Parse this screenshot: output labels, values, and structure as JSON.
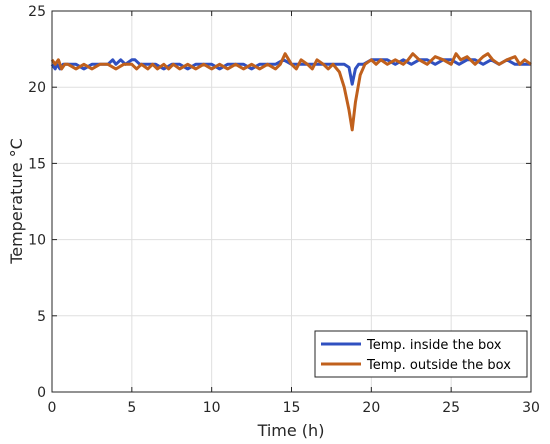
{
  "chart_data": {
    "type": "line",
    "title": "",
    "xlabel": "Time (h)",
    "ylabel": "Temperature °C",
    "xlim": [
      0,
      30
    ],
    "ylim": [
      0,
      25
    ],
    "x_ticks": [
      0,
      5,
      10,
      15,
      20,
      25,
      30
    ],
    "y_ticks": [
      0,
      5,
      10,
      15,
      20,
      25
    ],
    "grid": true,
    "legend_position": "bottom-right",
    "series": [
      {
        "name": "Temp. inside the box",
        "color": "#3050c0",
        "x": [
          0,
          0.2,
          0.3,
          0.5,
          0.7,
          1,
          1.5,
          2,
          2.5,
          3,
          3.5,
          3.8,
          4,
          4.3,
          4.6,
          5,
          5.2,
          5.5,
          6,
          6.5,
          7,
          7.5,
          8,
          8.5,
          9,
          9.5,
          10,
          10.5,
          11,
          11.5,
          12,
          12.5,
          13,
          13.5,
          14,
          14.5,
          15,
          15.5,
          16,
          16.5,
          17,
          17.5,
          18,
          18.3,
          18.6,
          18.8,
          19,
          19.2,
          19.5,
          20,
          20.5,
          21,
          21.5,
          22,
          22.5,
          23,
          23.5,
          24,
          24.5,
          25,
          25.5,
          26,
          26.5,
          27,
          27.5,
          28,
          28.5,
          29,
          29.5,
          30
        ],
        "values": [
          21.5,
          21.2,
          21.5,
          21.2,
          21.5,
          21.5,
          21.5,
          21.2,
          21.5,
          21.5,
          21.5,
          21.8,
          21.5,
          21.8,
          21.5,
          21.8,
          21.8,
          21.5,
          21.5,
          21.5,
          21.2,
          21.5,
          21.5,
          21.2,
          21.5,
          21.5,
          21.5,
          21.2,
          21.5,
          21.5,
          21.5,
          21.2,
          21.5,
          21.5,
          21.5,
          21.8,
          21.5,
          21.5,
          21.5,
          21.5,
          21.5,
          21.5,
          21.5,
          21.5,
          21.3,
          20.2,
          21.2,
          21.5,
          21.5,
          21.8,
          21.8,
          21.8,
          21.5,
          21.8,
          21.5,
          21.8,
          21.8,
          21.5,
          21.8,
          21.8,
          21.5,
          21.8,
          21.8,
          21.5,
          21.8,
          21.5,
          21.8,
          21.5,
          21.5,
          21.5
        ]
      },
      {
        "name": "Temp. outside the box",
        "color": "#c0601c",
        "x": [
          0,
          0.2,
          0.4,
          0.6,
          0.8,
          1,
          1.5,
          2,
          2.5,
          3,
          3.5,
          4,
          4.5,
          5,
          5.3,
          5.6,
          6,
          6.3,
          6.6,
          7,
          7.3,
          7.6,
          8,
          8.5,
          9,
          9.5,
          10,
          10.5,
          11,
          11.5,
          12,
          12.5,
          13,
          13.5,
          14,
          14.3,
          14.6,
          15,
          15.3,
          15.6,
          16,
          16.3,
          16.6,
          17,
          17.3,
          17.6,
          18,
          18.3,
          18.6,
          18.8,
          19,
          19.3,
          19.6,
          20,
          20.3,
          20.6,
          21,
          21.5,
          22,
          22.3,
          22.6,
          23,
          23.5,
          24,
          24.5,
          25,
          25.3,
          25.6,
          26,
          26.5,
          27,
          27.3,
          27.6,
          28,
          28.5,
          29,
          29.3,
          29.6,
          30
        ],
        "values": [
          21.8,
          21.5,
          21.8,
          21.2,
          21.5,
          21.5,
          21.2,
          21.5,
          21.2,
          21.5,
          21.5,
          21.2,
          21.5,
          21.5,
          21.2,
          21.5,
          21.2,
          21.5,
          21.2,
          21.5,
          21.2,
          21.5,
          21.2,
          21.5,
          21.2,
          21.5,
          21.2,
          21.5,
          21.2,
          21.5,
          21.2,
          21.5,
          21.2,
          21.5,
          21.2,
          21.5,
          22.2,
          21.5,
          21.2,
          21.8,
          21.5,
          21.2,
          21.8,
          21.5,
          21.2,
          21.5,
          21.0,
          20.0,
          18.5,
          17.2,
          19.0,
          20.8,
          21.5,
          21.8,
          21.5,
          21.8,
          21.5,
          21.8,
          21.5,
          21.8,
          22.2,
          21.8,
          21.5,
          22.0,
          21.8,
          21.5,
          22.2,
          21.8,
          22.0,
          21.5,
          22.0,
          22.2,
          21.8,
          21.5,
          21.8,
          22.0,
          21.5,
          21.8,
          21.5
        ]
      }
    ]
  }
}
